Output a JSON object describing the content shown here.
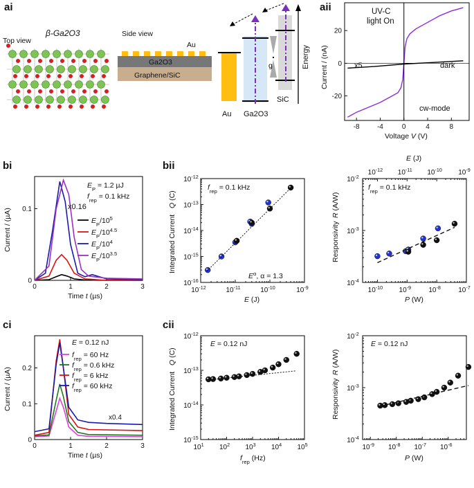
{
  "panels": {
    "ai": {
      "label": "ai",
      "top_view": "Top view",
      "material": "β-Ga2O3",
      "side_view": "Side view",
      "au": "Au",
      "ga2o3": "Ga2O3",
      "substrate": "Graphene/SiC",
      "band_labels": [
        "Au",
        "Ga2O3",
        "SiC"
      ],
      "gap_label": "g",
      "energy": "Energy"
    },
    "aii": {
      "label": "aii"
    },
    "bi": {
      "label": "bi"
    },
    "bii": {
      "label": "bii"
    },
    "ci": {
      "label": "ci"
    },
    "cii": {
      "label": "cii"
    }
  },
  "chart_data": [
    {
      "id": "aii",
      "type": "line",
      "xlabel": "Voltage V (V)",
      "ylabel": "Current / (nA)",
      "xlim": [
        -10,
        11
      ],
      "ylim": [
        -35,
        37
      ],
      "xticks": [
        -8,
        -4,
        0,
        4,
        8
      ],
      "yticks": [
        -20,
        0,
        20
      ],
      "annotations": [
        "UV-C",
        "light On",
        "x5",
        "dark",
        "cw-mode"
      ],
      "series": [
        {
          "name": "UV-C light On",
          "color": "#8a2be2",
          "x": [
            -9.5,
            -8,
            -6,
            -4,
            -2,
            -1,
            -0.5,
            -0.2,
            0,
            0.2,
            0.5,
            1,
            2,
            4,
            6,
            8,
            10
          ],
          "y": [
            -33,
            -30,
            -27,
            -24,
            -20,
            -18,
            -15,
            -10,
            0,
            10,
            15,
            18,
            21,
            25,
            29,
            32,
            34
          ]
        },
        {
          "name": "dark",
          "color": "#000000",
          "x": [
            -9.5,
            -5,
            0,
            5,
            10
          ],
          "y": [
            -3,
            -2,
            -0.5,
            0.5,
            1.5
          ]
        }
      ]
    },
    {
      "id": "bi",
      "type": "line",
      "xlabel": "Time t (µs)",
      "ylabel": "Current / (µA)",
      "xlim": [
        0,
        3
      ],
      "ylim": [
        0,
        0.145
      ],
      "xticks": [
        0,
        1,
        2,
        3
      ],
      "yticks": [
        0.0,
        0.1
      ],
      "annotations": [
        "EP = 1.2 µJ",
        "frep = 0.1 kHz",
        "x0.16"
      ],
      "series": [
        {
          "name": "EP/10^5",
          "color": "#000000",
          "x": [
            0,
            0.4,
            0.6,
            0.75,
            0.9,
            1.1,
            1.4,
            2,
            3
          ],
          "y": [
            0,
            0.001,
            0.005,
            0.008,
            0.006,
            0.002,
            0.0005,
            0,
            0
          ]
        },
        {
          "name": "EP/10^4.5",
          "color": "#dd1111",
          "x": [
            0,
            0.4,
            0.6,
            0.75,
            0.9,
            1.1,
            1.4,
            2,
            3
          ],
          "y": [
            0,
            0.006,
            0.028,
            0.036,
            0.028,
            0.01,
            0.002,
            0,
            0
          ]
        },
        {
          "name": "EP/10^4",
          "color": "#1a1aaa",
          "x": [
            0,
            0.3,
            0.5,
            0.7,
            0.85,
            1.0,
            1.2,
            1.4,
            1.6,
            2,
            3
          ],
          "y": [
            0,
            0.01,
            0.07,
            0.138,
            0.11,
            0.05,
            0.01,
            0.005,
            0.008,
            0.002,
            0.001
          ]
        },
        {
          "name": "EP/10^3.5",
          "color": "#9b30c0",
          "x": [
            0,
            0.4,
            0.6,
            0.8,
            0.95,
            1.1,
            1.3,
            1.5,
            2,
            3
          ],
          "y": [
            0,
            0.02,
            0.1,
            0.14,
            0.12,
            0.06,
            0.015,
            0.006,
            0.003,
            0.002
          ]
        }
      ]
    },
    {
      "id": "bii",
      "type": "scatter",
      "xlabel": "E (J)",
      "ylabel": "Integrated Current Q (C)",
      "xlim_log": [
        -12,
        -9
      ],
      "ylim_log": [
        -16,
        -12
      ],
      "annotations": [
        "frep = 0.1 kHz",
        "Eα, α = 1.3"
      ],
      "series": [
        {
          "name": "blue",
          "color": "#2233cc",
          "x": [
            1.6e-12,
            4e-12,
            1e-11,
            1.1e-11,
            2.7e-11,
            3e-11,
            9e-11
          ],
          "y": [
            3e-16,
            1e-15,
            3.5e-15,
            4e-15,
            2.2e-14,
            1.8e-14,
            1.2e-13
          ]
        },
        {
          "name": "black",
          "color": "#111111",
          "x": [
            1.1e-11,
            3e-11,
            1e-10,
            4e-10
          ],
          "y": [
            4e-15,
            2e-14,
            7e-14,
            4.5e-13
          ]
        },
        {
          "name": "fit",
          "x": [
            1.5e-12,
            4e-10
          ],
          "y": [
            2.7e-16,
            4.3e-13
          ]
        }
      ]
    },
    {
      "id": "bii-right",
      "type": "scatter",
      "xlabel": "P (W)",
      "top_xlabel": "E (J)",
      "ylabel": "Responsivity R (A/W)",
      "xlim_log": [
        -10.5,
        -7
      ],
      "top_xlim_log": [
        -12.5,
        -9
      ],
      "ylim_log": [
        -4,
        -2
      ],
      "annotations": [
        "frep = 0.1 kHz"
      ],
      "series": [
        {
          "name": "blue",
          "color": "#2233cc",
          "x": [
            1e-10,
            2.5e-10,
            9e-10,
            1.1e-09,
            3.5e-09,
            1.1e-08
          ],
          "y": [
            0.00032,
            0.00036,
            0.0004,
            0.00043,
            0.0007,
            0.0011
          ]
        },
        {
          "name": "black",
          "color": "#111111",
          "x": [
            1.1e-09,
            3.5e-09,
            1e-08,
            4e-08
          ],
          "y": [
            0.00039,
            0.00053,
            0.00065,
            0.00135
          ]
        },
        {
          "name": "fit",
          "x": [
            1e-10,
            4e-08
          ],
          "y": [
            0.00024,
            0.00115
          ]
        }
      ]
    },
    {
      "id": "ci",
      "type": "line",
      "xlabel": "Time t (µs)",
      "ylabel": "Current / (µA)",
      "xlim": [
        0,
        3
      ],
      "ylim": [
        0,
        0.29
      ],
      "xticks": [
        0,
        1,
        2,
        3
      ],
      "yticks": [
        0.0,
        0.1,
        0.2
      ],
      "annotations": [
        "E = 0.12 nJ",
        "x0.4"
      ],
      "series": [
        {
          "name": "frep = 60 Hz",
          "color": "#e040e0",
          "x": [
            0,
            0.4,
            0.6,
            0.7,
            0.8,
            0.95,
            1.2,
            1.5,
            3
          ],
          "y": [
            0.008,
            0.01,
            0.08,
            0.115,
            0.09,
            0.035,
            0.012,
            0.009,
            0.008
          ]
        },
        {
          "name": "frep = 0.6 kHz",
          "color": "#1a7a1a",
          "x": [
            0,
            0.4,
            0.6,
            0.7,
            0.8,
            0.95,
            1.2,
            1.5,
            3
          ],
          "y": [
            0.01,
            0.013,
            0.11,
            0.155,
            0.12,
            0.05,
            0.02,
            0.014,
            0.012
          ]
        },
        {
          "name": "frep = 6 kHz",
          "color": "#dd1111",
          "x": [
            0,
            0.4,
            0.6,
            0.7,
            0.8,
            0.95,
            1.2,
            1.5,
            3
          ],
          "y": [
            0.012,
            0.02,
            0.22,
            0.28,
            0.2,
            0.07,
            0.035,
            0.028,
            0.025
          ]
        },
        {
          "name": "frep = 60 kHz",
          "color": "#1a1aaa",
          "x": [
            0,
            0.4,
            0.6,
            0.7,
            0.8,
            0.95,
            1.2,
            1.5,
            2,
            3
          ],
          "y": [
            0.022,
            0.03,
            0.21,
            0.27,
            0.2,
            0.09,
            0.055,
            0.048,
            0.045,
            0.042
          ]
        }
      ]
    },
    {
      "id": "cii",
      "type": "scatter",
      "xlabel": "frep (Hz)",
      "ylabel": "Integrated Current Q (C)",
      "xlim_log": [
        1,
        5
      ],
      "ylim_log": [
        -15,
        -12
      ],
      "annotations": [
        "E = 0.12 nJ"
      ],
      "series": [
        {
          "name": "data",
          "color": "#111111",
          "x": [
            20,
            30,
            60,
            100,
            200,
            300,
            600,
            1000,
            2000,
            3000,
            6000,
            10000,
            20000,
            50000
          ],
          "y": [
            5.5e-14,
            5.6e-14,
            5.8e-14,
            6.1e-14,
            6.4e-14,
            6.7e-14,
            7.3e-14,
            7.9e-14,
            9e-14,
            1e-13,
            1.2e-13,
            1.5e-13,
            2e-13,
            3e-13
          ]
        },
        {
          "name": "fit",
          "x": [
            20,
            50000
          ],
          "y": [
            5.3e-14,
            9.7e-14
          ]
        }
      ]
    },
    {
      "id": "cii-right",
      "type": "scatter",
      "xlabel": "P (W)",
      "ylabel": "Responsivity R (A/W)",
      "xlim_log": [
        -9.3,
        -5.3
      ],
      "ylim_log": [
        -4,
        -2
      ],
      "annotations": [
        "E = 0.12 nJ"
      ],
      "series": [
        {
          "name": "data",
          "color": "#111111",
          "x": [
            2.4e-09,
            3.6e-09,
            7e-09,
            1.2e-08,
            2.4e-08,
            3.6e-08,
            7e-08,
            1.2e-07,
            2.4e-07,
            3.6e-07,
            7e-07,
            1.2e-06,
            2.4e-06,
            6e-06
          ],
          "y": [
            0.00045,
            0.00046,
            0.00048,
            0.0005,
            0.00053,
            0.00056,
            0.0006,
            0.00065,
            0.00075,
            0.00083,
            0.001,
            0.00125,
            0.0017,
            0.0025
          ]
        },
        {
          "name": "fit",
          "x": [
            2.4e-09,
            6e-06
          ],
          "y": [
            0.00044,
            0.0011
          ]
        }
      ]
    }
  ]
}
